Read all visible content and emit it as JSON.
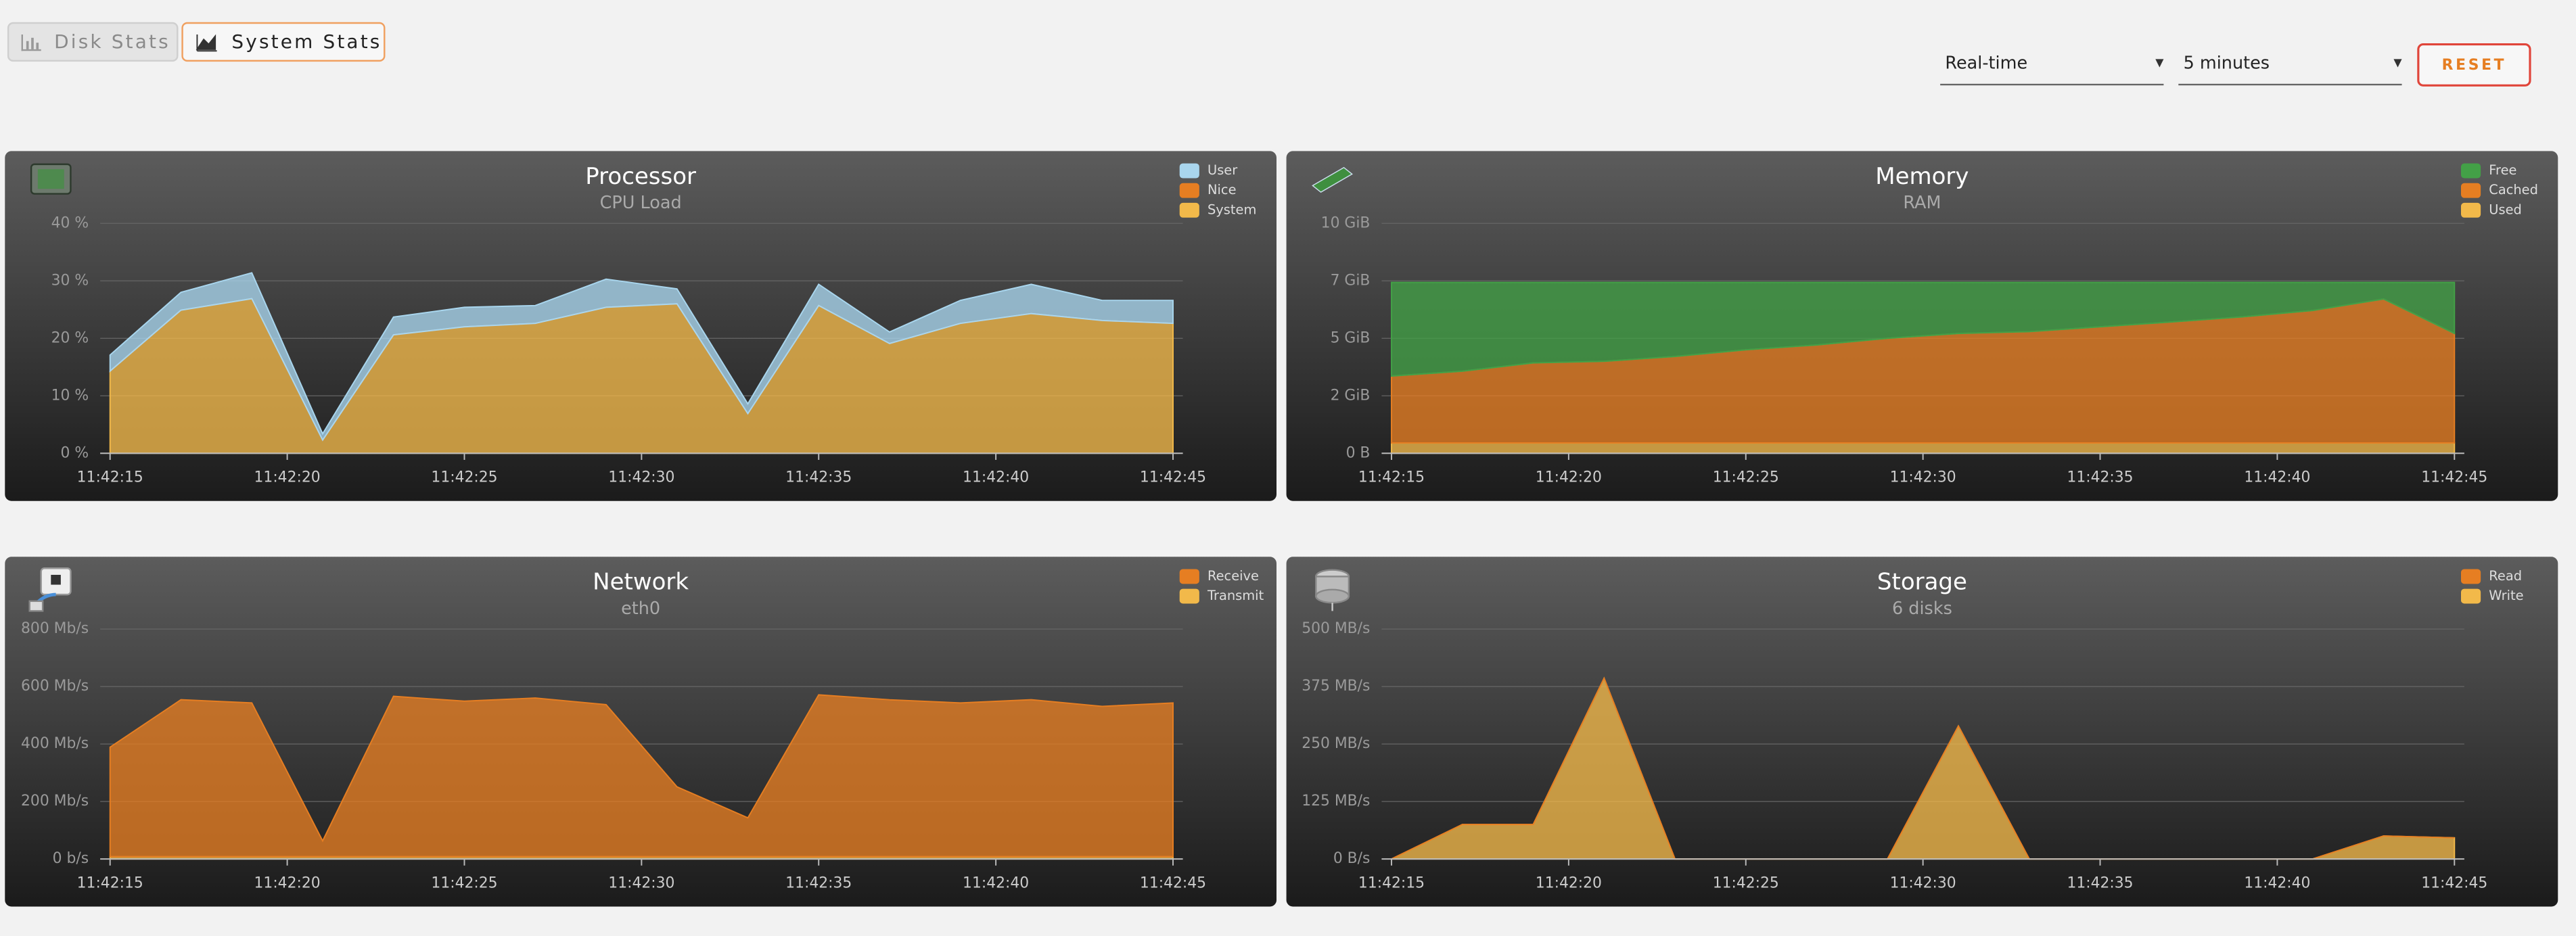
{
  "tabs": [
    {
      "label": "Disk Stats",
      "active": false
    },
    {
      "label": "System Stats",
      "active": true
    }
  ],
  "controls": {
    "range": "Real-time",
    "window": "5 minutes",
    "reset": "RESET"
  },
  "chart_data": [
    {
      "type": "area",
      "stacked": true,
      "title": "Processor",
      "subtitle": "CPU Load",
      "grid": true,
      "legend": "top-right",
      "x": [
        "11:42:15",
        "11:42:17",
        "11:42:19",
        "11:42:21",
        "11:42:23",
        "11:42:25",
        "11:42:27",
        "11:42:29",
        "11:42:31",
        "11:42:33",
        "11:42:35",
        "11:42:37",
        "11:42:39",
        "11:42:41",
        "11:42:43",
        "11:42:45"
      ],
      "xlim": [
        "11:42:15",
        "11:42:45"
      ],
      "xticks": [
        "11:42:15",
        "11:42:20",
        "11:42:25",
        "11:42:30",
        "11:42:35",
        "11:42:40",
        "11:42:45"
      ],
      "ylim": [
        0,
        40
      ],
      "yticks": [
        {
          "value": 0,
          "label": "0 %"
        },
        {
          "value": 10,
          "label": "10 %"
        },
        {
          "value": 20,
          "label": "20 %"
        },
        {
          "value": 30,
          "label": "30 %"
        },
        {
          "value": 40,
          "label": "40 %"
        }
      ],
      "series": [
        {
          "name": "User",
          "color": "#a9d6ee",
          "values": [
            2.8,
            3.1,
            4.5,
            1.1,
            3.1,
            3.4,
            3.1,
            4.9,
            2.6,
            1.7,
            3.7,
            2.0,
            4.0,
            5.1,
            3.5,
            4.0
          ]
        },
        {
          "name": "Nice",
          "color": "#e67e22",
          "values": [
            0,
            0,
            0,
            0,
            0,
            0,
            0,
            0,
            0,
            0,
            0,
            0,
            0,
            0,
            0,
            0
          ]
        },
        {
          "name": "System",
          "color": "#f2b94a",
          "values": [
            14.3,
            24.9,
            26.9,
            2.3,
            20.6,
            22.0,
            22.6,
            25.4,
            26.0,
            6.9,
            25.7,
            19.1,
            22.6,
            24.3,
            23.1,
            22.6
          ]
        }
      ]
    },
    {
      "type": "area",
      "stacked": true,
      "title": "Memory",
      "subtitle": "RAM",
      "grid": true,
      "legend": "top-right",
      "x": [
        "11:42:15",
        "11:42:17",
        "11:42:19",
        "11:42:21",
        "11:42:23",
        "11:42:25",
        "11:42:27",
        "11:42:29",
        "11:42:31",
        "11:42:33",
        "11:42:35",
        "11:42:37",
        "11:42:39",
        "11:42:41",
        "11:42:43",
        "11:42:45"
      ],
      "xlim": [
        "11:42:15",
        "11:42:45"
      ],
      "xticks": [
        "11:42:15",
        "11:42:20",
        "11:42:25",
        "11:42:30",
        "11:42:35",
        "11:42:40",
        "11:42:45"
      ],
      "ylim": [
        0,
        10
      ],
      "yticks": [
        {
          "value": 0,
          "label": "0 B"
        },
        {
          "value": 2.5,
          "label": "2 GiB"
        },
        {
          "value": 5,
          "label": "5 GiB"
        },
        {
          "value": 7.5,
          "label": "7 GiB"
        },
        {
          "value": 10,
          "label": "10 GiB"
        }
      ],
      "series": [
        {
          "name": "Free",
          "color": "#43a047",
          "values": [
            4.07,
            3.86,
            3.5,
            3.43,
            3.22,
            2.93,
            2.72,
            2.43,
            2.22,
            2.14,
            1.93,
            1.72,
            1.5,
            1.22,
            0.72,
            2.22
          ]
        },
        {
          "name": "Cached",
          "color": "#e67e22",
          "values": [
            2.91,
            3.12,
            3.48,
            3.55,
            3.76,
            4.05,
            4.26,
            4.55,
            4.76,
            4.84,
            5.05,
            5.26,
            5.48,
            5.76,
            6.26,
            4.76
          ]
        },
        {
          "name": "Used",
          "color": "#f2b94a",
          "values": [
            0.45,
            0.45,
            0.45,
            0.45,
            0.45,
            0.45,
            0.45,
            0.45,
            0.45,
            0.45,
            0.45,
            0.45,
            0.45,
            0.45,
            0.45,
            0.45
          ]
        }
      ]
    },
    {
      "type": "area",
      "stacked": true,
      "title": "Network",
      "subtitle": "eth0",
      "grid": true,
      "legend": "top-right",
      "x": [
        "11:42:15",
        "11:42:17",
        "11:42:19",
        "11:42:21",
        "11:42:23",
        "11:42:25",
        "11:42:27",
        "11:42:29",
        "11:42:31",
        "11:42:33",
        "11:42:35",
        "11:42:37",
        "11:42:39",
        "11:42:41",
        "11:42:43",
        "11:42:45"
      ],
      "xlim": [
        "11:42:15",
        "11:42:45"
      ],
      "xticks": [
        "11:42:15",
        "11:42:20",
        "11:42:25",
        "11:42:30",
        "11:42:35",
        "11:42:40",
        "11:42:45"
      ],
      "ylim": [
        0,
        800
      ],
      "yticks": [
        {
          "value": 0,
          "label": "0 b/s"
        },
        {
          "value": 200,
          "label": "200 Mb/s"
        },
        {
          "value": 400,
          "label": "400 Mb/s"
        },
        {
          "value": 600,
          "label": "600 Mb/s"
        },
        {
          "value": 800,
          "label": "800 Mb/s"
        }
      ],
      "series": [
        {
          "name": "Receive",
          "color": "#e67e22",
          "values": [
            381,
            546,
            535,
            55,
            558,
            541,
            552,
            529,
            243,
            135,
            563,
            546,
            535,
            546,
            523,
            535
          ]
        },
        {
          "name": "Transmit",
          "color": "#f2b94a",
          "values": [
            8,
            8,
            8,
            8,
            8,
            8,
            8,
            8,
            8,
            8,
            8,
            8,
            8,
            8,
            8,
            8
          ]
        }
      ]
    },
    {
      "type": "area",
      "stacked": true,
      "title": "Storage",
      "subtitle": "6 disks",
      "grid": true,
      "legend": "top-right",
      "x": [
        "11:42:15",
        "11:42:17",
        "11:42:19",
        "11:42:21",
        "11:42:23",
        "11:42:25",
        "11:42:27",
        "11:42:29",
        "11:42:31",
        "11:42:33",
        "11:42:35",
        "11:42:37",
        "11:42:39",
        "11:42:41",
        "11:42:43",
        "11:42:45"
      ],
      "xlim": [
        "11:42:15",
        "11:42:45"
      ],
      "xticks": [
        "11:42:15",
        "11:42:20",
        "11:42:25",
        "11:42:30",
        "11:42:35",
        "11:42:40",
        "11:42:45"
      ],
      "ylim": [
        0,
        500
      ],
      "yticks": [
        {
          "value": 0,
          "label": "0 B/s"
        },
        {
          "value": 125,
          "label": "125 MB/s"
        },
        {
          "value": 250,
          "label": "250 MB/s"
        },
        {
          "value": 375,
          "label": "375 MB/s"
        },
        {
          "value": 500,
          "label": "500 MB/s"
        }
      ],
      "series": [
        {
          "name": "Read",
          "color": "#e67e22",
          "values": [
            0,
            0,
            0,
            0,
            0,
            0,
            0,
            0,
            0,
            0,
            0,
            0,
            0,
            0,
            0,
            0
          ]
        },
        {
          "name": "Write",
          "color": "#f2b94a",
          "values": [
            0,
            75,
            75,
            393,
            0,
            0,
            0,
            0,
            289,
            0,
            0,
            0,
            0,
            0,
            50,
            46
          ]
        }
      ]
    }
  ]
}
